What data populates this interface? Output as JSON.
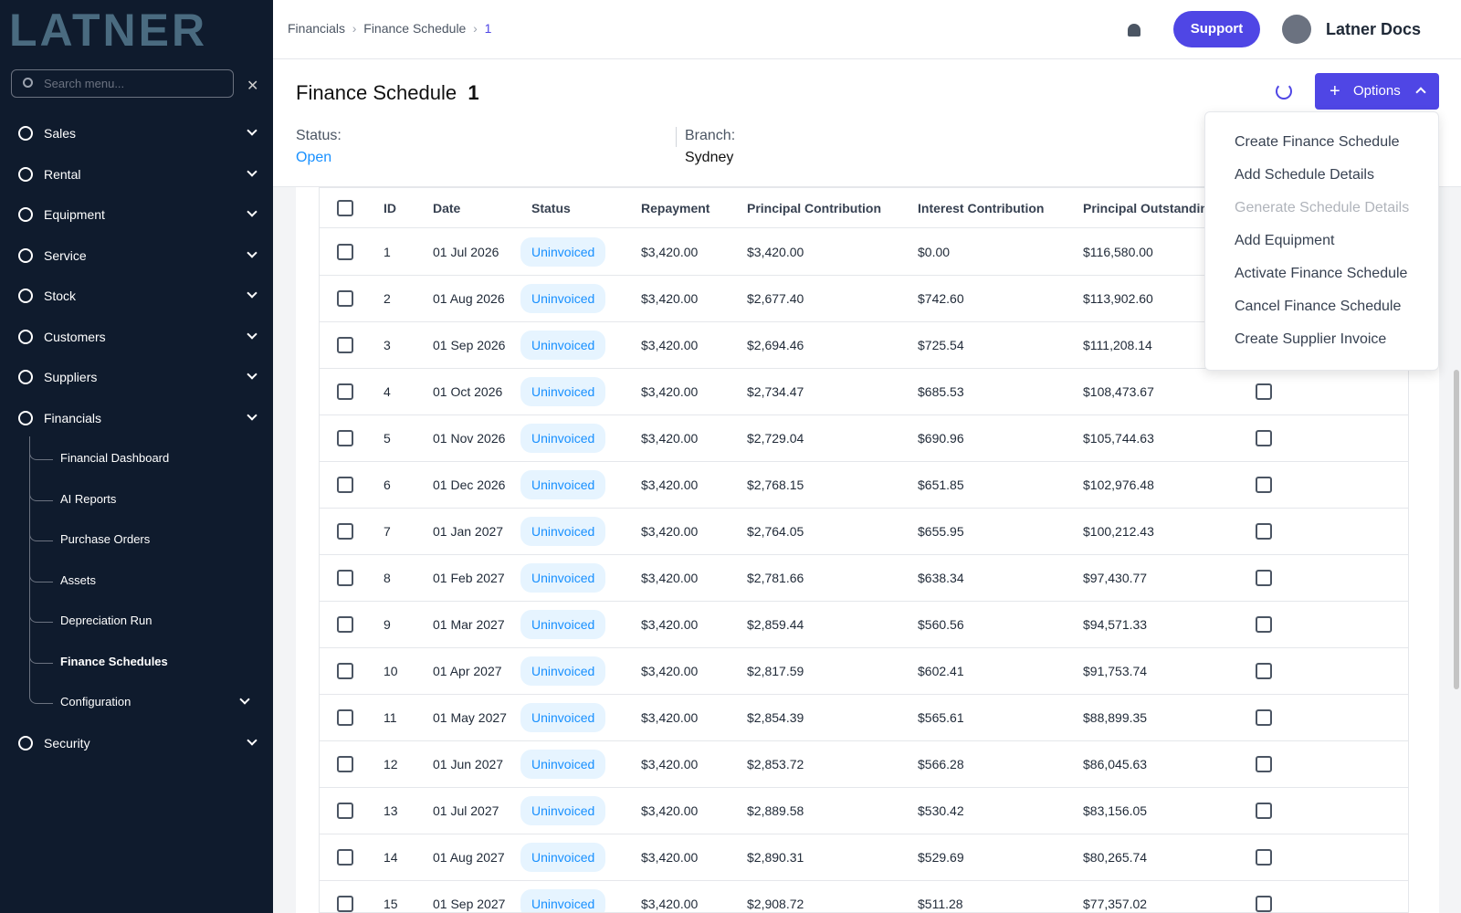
{
  "sidebar": {
    "logo": "LATNER",
    "search_placeholder": "Search menu...",
    "items": [
      {
        "label": "Sales"
      },
      {
        "label": "Rental"
      },
      {
        "label": "Equipment"
      },
      {
        "label": "Service"
      },
      {
        "label": "Stock"
      },
      {
        "label": "Customers"
      },
      {
        "label": "Suppliers"
      },
      {
        "label": "Financials",
        "children": [
          {
            "label": "Financial Dashboard"
          },
          {
            "label": "AI Reports"
          },
          {
            "label": "Purchase Orders"
          },
          {
            "label": "Assets"
          },
          {
            "label": "Depreciation Run"
          },
          {
            "label": "Finance Schedules",
            "active": true
          },
          {
            "label": "Configuration"
          }
        ]
      },
      {
        "label": "Security"
      }
    ]
  },
  "topbar": {
    "breadcrumb": [
      "Financials",
      "Finance Schedule",
      "1"
    ],
    "support": "Support",
    "user": "Latner Docs"
  },
  "header": {
    "title": "Finance Schedule",
    "id": "1",
    "status_label": "Status:",
    "status": "Open",
    "branch_label": "Branch:",
    "branch": "Sydney",
    "options": "Options"
  },
  "options_menu": [
    {
      "label": "Create Finance Schedule"
    },
    {
      "label": "Add Schedule Details"
    },
    {
      "label": "Generate Schedule Details",
      "disabled": true
    },
    {
      "label": "Add Equipment"
    },
    {
      "label": "Activate Finance Schedule"
    },
    {
      "label": "Cancel Finance Schedule"
    },
    {
      "label": "Create Supplier Invoice"
    }
  ],
  "table": {
    "columns": [
      "ID",
      "Date",
      "Status",
      "Repayment",
      "Principal Contribution",
      "Interest Contribution",
      "Principal Outstanding"
    ],
    "rows": [
      [
        "1",
        "01 Jul 2026",
        "Uninvoiced",
        "$3,420.00",
        "$3,420.00",
        "$0.00",
        "$116,580.00"
      ],
      [
        "2",
        "01 Aug 2026",
        "Uninvoiced",
        "$3,420.00",
        "$2,677.40",
        "$742.60",
        "$113,902.60"
      ],
      [
        "3",
        "01 Sep 2026",
        "Uninvoiced",
        "$3,420.00",
        "$2,694.46",
        "$725.54",
        "$111,208.14"
      ],
      [
        "4",
        "01 Oct 2026",
        "Uninvoiced",
        "$3,420.00",
        "$2,734.47",
        "$685.53",
        "$108,473.67"
      ],
      [
        "5",
        "01 Nov 2026",
        "Uninvoiced",
        "$3,420.00",
        "$2,729.04",
        "$690.96",
        "$105,744.63"
      ],
      [
        "6",
        "01 Dec 2026",
        "Uninvoiced",
        "$3,420.00",
        "$2,768.15",
        "$651.85",
        "$102,976.48"
      ],
      [
        "7",
        "01 Jan 2027",
        "Uninvoiced",
        "$3,420.00",
        "$2,764.05",
        "$655.95",
        "$100,212.43"
      ],
      [
        "8",
        "01 Feb 2027",
        "Uninvoiced",
        "$3,420.00",
        "$2,781.66",
        "$638.34",
        "$97,430.77"
      ],
      [
        "9",
        "01 Mar 2027",
        "Uninvoiced",
        "$3,420.00",
        "$2,859.44",
        "$560.56",
        "$94,571.33"
      ],
      [
        "10",
        "01 Apr 2027",
        "Uninvoiced",
        "$3,420.00",
        "$2,817.59",
        "$602.41",
        "$91,753.74"
      ],
      [
        "11",
        "01 May 2027",
        "Uninvoiced",
        "$3,420.00",
        "$2,854.39",
        "$565.61",
        "$88,899.35"
      ],
      [
        "12",
        "01 Jun 2027",
        "Uninvoiced",
        "$3,420.00",
        "$2,853.72",
        "$566.28",
        "$86,045.63"
      ],
      [
        "13",
        "01 Jul 2027",
        "Uninvoiced",
        "$3,420.00",
        "$2,889.58",
        "$530.42",
        "$83,156.05"
      ],
      [
        "14",
        "01 Aug 2027",
        "Uninvoiced",
        "$3,420.00",
        "$2,890.31",
        "$529.69",
        "$80,265.74"
      ],
      [
        "15",
        "01 Sep 2027",
        "Uninvoiced",
        "$3,420.00",
        "$2,908.72",
        "$511.28",
        "$77,357.02"
      ]
    ]
  }
}
